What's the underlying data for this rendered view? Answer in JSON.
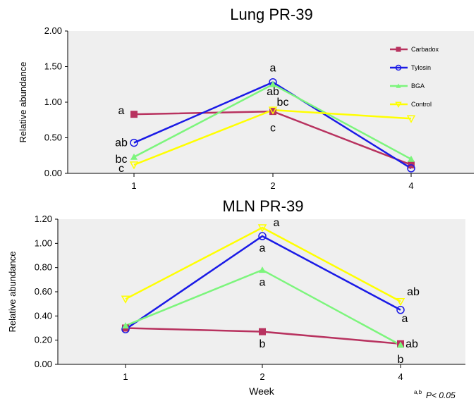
{
  "chart_data": [
    {
      "type": "line",
      "title": "Lung  PR-39",
      "xlabel": "",
      "ylabel": "Relative  abundance",
      "categories": [
        "1",
        "2",
        "4"
      ],
      "ylim": [
        0,
        2.0
      ],
      "yticks": [
        "0.00",
        "0.50",
        "1.00",
        "1.50",
        "2.00"
      ],
      "grid": false,
      "legend_position": "top-right",
      "series": [
        {
          "name": "Carbadox",
          "color": "#b8325f",
          "marker": "square",
          "values": [
            0.83,
            0.87,
            0.12
          ]
        },
        {
          "name": "Tylosin",
          "color": "#1a1ae6",
          "marker": "circle",
          "values": [
            0.43,
            1.28,
            0.07
          ]
        },
        {
          "name": "BGA",
          "color": "#7cf57c",
          "marker": "triangle-up",
          "values": [
            0.23,
            1.25,
            0.2
          ]
        },
        {
          "name": "Control",
          "color": "#ffff00",
          "marker": "triangle-down",
          "values": [
            0.12,
            0.89,
            0.77
          ]
        }
      ],
      "annotations": [
        {
          "text": "a",
          "x": "1",
          "y": 0.88
        },
        {
          "text": "ab",
          "x": "1",
          "y": 0.43
        },
        {
          "text": "bc",
          "x": "1",
          "y": 0.2
        },
        {
          "text": "c",
          "x": "1",
          "y": 0.07
        },
        {
          "text": "a",
          "x": "2",
          "y": 1.48
        },
        {
          "text": "ab",
          "x": "2",
          "y": 1.15
        },
        {
          "text": "bc",
          "x": "2",
          "y": 1.0
        },
        {
          "text": "c",
          "x": "2",
          "y": 0.64
        }
      ]
    },
    {
      "type": "line",
      "title": "MLN  PR-39",
      "xlabel": "Week",
      "ylabel": "Relative  abundance",
      "categories": [
        "1",
        "2",
        "4"
      ],
      "ylim": [
        0,
        1.2
      ],
      "yticks": [
        "0.00",
        "0.20",
        "0.40",
        "0.60",
        "0.80",
        "1.00",
        "1.20"
      ],
      "grid": false,
      "series": [
        {
          "name": "Carbadox",
          "color": "#b8325f",
          "marker": "square",
          "values": [
            0.3,
            0.27,
            0.17
          ]
        },
        {
          "name": "Tylosin",
          "color": "#1a1ae6",
          "marker": "circle",
          "values": [
            0.29,
            1.06,
            0.45
          ]
        },
        {
          "name": "BGA",
          "color": "#7cf57c",
          "marker": "triangle-up",
          "values": [
            0.32,
            0.78,
            0.16
          ]
        },
        {
          "name": "Control",
          "color": "#ffff00",
          "marker": "triangle-down",
          "values": [
            0.54,
            1.13,
            0.52
          ]
        }
      ],
      "annotations": [
        {
          "text": "a",
          "x": "2",
          "y": 1.17
        },
        {
          "text": "a",
          "x": "2",
          "y": 0.96
        },
        {
          "text": "a",
          "x": "2",
          "y": 0.68
        },
        {
          "text": "b",
          "x": "2",
          "y": 0.17
        },
        {
          "text": "ab",
          "x": "4",
          "y": 0.6
        },
        {
          "text": "a",
          "x": "4",
          "y": 0.38
        },
        {
          "text": "ab",
          "x": "4",
          "y": 0.17
        },
        {
          "text": "b",
          "x": "4",
          "y": 0.04
        }
      ]
    }
  ],
  "footnote": {
    "superscript": "a,b",
    "text": "P< 0.05"
  }
}
